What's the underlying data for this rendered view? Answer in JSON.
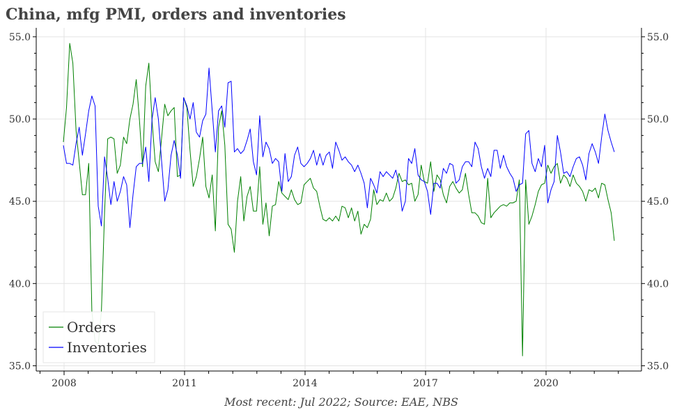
{
  "chart_data": {
    "type": "line",
    "title": "China, mfg PMI, orders and inventories",
    "footnote": "Most recent: Jul 2022; Source: EAE, NBS",
    "x_start": "2008-01",
    "x_end": "2022-07",
    "frequency": "monthly",
    "x_tick_labels": [
      "2008",
      "2011",
      "2014",
      "2017",
      "2020"
    ],
    "y_tick_labels": [
      "35.0",
      "40.0",
      "45.0",
      "50.0",
      "55.0"
    ],
    "ylim": [
      35,
      55
    ],
    "grid": true,
    "dual_y_axis_labels": true,
    "legend_position": "bottom-left",
    "series": [
      {
        "name": "Orders",
        "color": "#008000",
        "values": [
          48.6,
          50.7,
          54.6,
          53.4,
          49.3,
          47.4,
          45.4,
          45.4,
          47.3,
          38.3,
          36.5,
          36.3,
          38.3,
          44.3,
          48.8,
          48.9,
          48.8,
          46.7,
          47.2,
          48.9,
          48.5,
          50.0,
          50.9,
          52.4,
          50.0,
          47.1,
          52.0,
          53.4,
          49.9,
          47.4,
          46.8,
          48.8,
          50.9,
          50.2,
          50.5,
          50.7,
          46.5,
          46.6,
          51.3,
          50.7,
          48.1,
          45.9,
          46.5,
          47.6,
          48.9,
          45.9,
          45.2,
          46.6,
          43.2,
          49.5,
          50.5,
          48.4,
          43.6,
          43.3,
          41.9,
          45.0,
          46.5,
          43.8,
          45.3,
          45.9,
          44.4,
          44.4,
          47.1,
          43.6,
          44.9,
          42.9,
          44.7,
          44.8,
          46.2,
          45.5,
          45.3,
          45.1,
          45.7,
          45.1,
          44.8,
          44.9,
          46.0,
          46.2,
          46.4,
          45.8,
          45.6,
          44.7,
          43.9,
          43.8,
          44.0,
          43.8,
          44.1,
          43.8,
          44.7,
          44.6,
          44.0,
          44.6,
          43.8,
          44.4,
          43.0,
          43.6,
          43.4,
          43.9,
          45.7,
          44.8,
          45.1,
          45.0,
          45.5,
          45.0,
          45.2,
          45.8,
          46.7,
          46.2,
          46.3,
          46.0,
          46.1,
          45.0,
          45.4,
          47.2,
          46.2,
          46.1,
          47.4,
          45.6,
          46.6,
          46.3,
          45.4,
          44.9,
          45.9,
          46.2,
          45.8,
          45.5,
          45.7,
          46.7,
          45.4,
          44.3,
          44.3,
          44.1,
          43.7,
          43.6,
          46.4,
          44.0,
          44.3,
          44.5,
          44.7,
          44.8,
          44.7,
          44.9,
          44.9,
          45.0,
          46.3,
          35.6,
          46.3,
          43.6,
          44.1,
          44.8,
          45.6,
          46.0,
          46.1,
          47.2,
          46.7,
          47.1,
          47.3,
          46.1,
          46.6,
          46.4,
          45.9,
          46.6,
          46.1,
          45.9,
          45.6,
          45.0,
          45.7,
          45.6,
          45.8,
          45.2,
          46.1,
          46.0,
          45.1,
          44.3,
          42.6
        ]
      },
      {
        "name": "Inventories",
        "color": "#0000ff",
        "values": [
          48.4,
          47.3,
          47.3,
          47.2,
          48.5,
          49.5,
          47.8,
          49.1,
          50.5,
          51.4,
          50.8,
          44.7,
          43.5,
          47.7,
          46.4,
          44.8,
          46.2,
          45.0,
          45.6,
          46.5,
          46.0,
          43.4,
          45.4,
          47.1,
          47.3,
          47.3,
          48.3,
          46.2,
          50.0,
          51.3,
          50.0,
          47.5,
          45.0,
          45.7,
          47.8,
          48.7,
          47.8,
          46.4,
          51.3,
          50.8,
          50.0,
          51.0,
          49.2,
          48.9,
          49.9,
          50.3,
          53.1,
          50.5,
          48.0,
          50.5,
          50.8,
          49.5,
          52.2,
          52.3,
          48.0,
          48.2,
          47.9,
          48.1,
          48.7,
          49.4,
          47.4,
          46.6,
          50.2,
          47.7,
          48.6,
          48.2,
          47.3,
          47.6,
          47.4,
          45.6,
          47.9,
          46.2,
          46.5,
          47.8,
          48.3,
          47.3,
          47.1,
          47.3,
          47.6,
          48.1,
          47.2,
          47.9,
          47.2,
          47.8,
          48.0,
          47.0,
          48.6,
          48.1,
          47.5,
          47.7,
          47.4,
          47.2,
          46.8,
          47.2,
          46.7,
          46.1,
          44.6,
          46.4,
          46.0,
          45.5,
          46.8,
          46.5,
          46.8,
          46.6,
          46.4,
          46.9,
          46.1,
          44.4,
          45.0,
          47.6,
          47.3,
          48.2,
          46.6,
          46.3,
          46.2,
          45.6,
          44.2,
          46.1,
          46.1,
          45.8,
          47.0,
          46.7,
          47.3,
          47.2,
          46.1,
          46.3,
          47.1,
          47.4,
          47.4,
          47.1,
          48.6,
          48.2,
          47.1,
          46.4,
          47.0,
          46.5,
          48.1,
          48.1,
          47.0,
          47.8,
          47.1,
          46.7,
          46.4,
          45.6,
          46.0,
          46.1,
          49.1,
          49.3,
          47.3,
          46.8,
          47.6,
          47.1,
          48.4,
          44.9,
          45.7,
          46.2,
          49.0,
          48.0,
          46.7,
          46.8,
          46.5,
          47.1,
          47.6,
          47.7,
          47.2,
          46.3,
          47.9,
          48.5,
          48.0,
          47.3,
          48.9,
          50.3,
          49.3,
          48.6,
          48.0
        ]
      }
    ]
  }
}
